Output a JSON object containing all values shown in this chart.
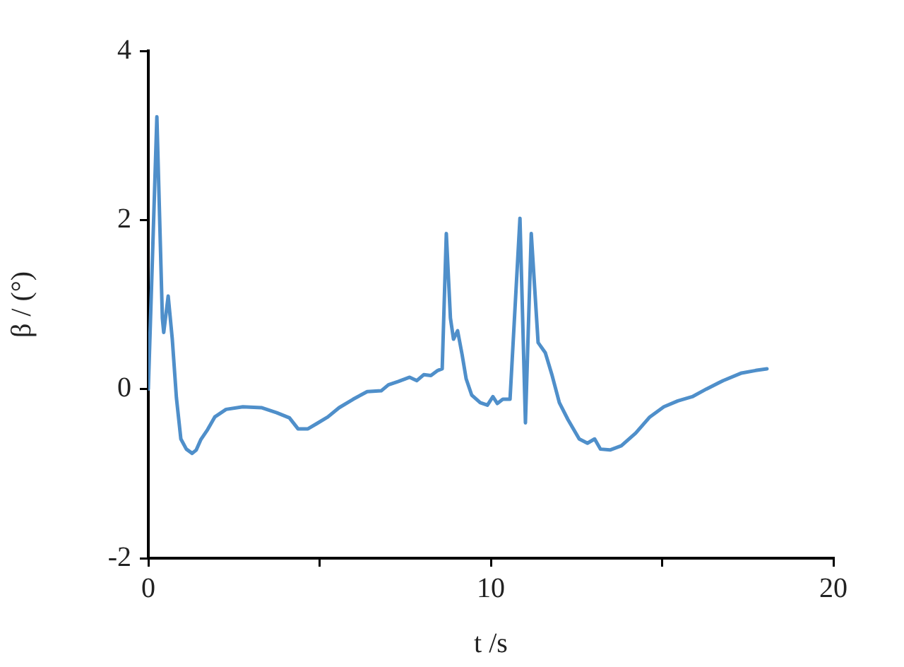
{
  "chart_data": {
    "type": "line",
    "xlabel": "t /s",
    "ylabel": "β / (°)",
    "xlim": [
      0,
      20
    ],
    "xticks": [
      0,
      {
        "value": 5,
        "label": null
      },
      10,
      {
        "value": 15,
        "label": null
      },
      20
    ],
    "ylim": [
      -2,
      4
    ],
    "yticks": [
      -2,
      0,
      2,
      4
    ],
    "grid": false,
    "legend": false,
    "marker": "none",
    "line_style": "solid",
    "series": [
      {
        "color": "#4f8fca",
        "x": [
          0,
          0.25,
          0.41,
          0.45,
          0.58,
          0.7,
          0.82,
          0.95,
          1.11,
          1.28,
          1.4,
          1.53,
          1.73,
          1.94,
          2.27,
          2.76,
          3.3,
          3.75,
          4.12,
          4.37,
          4.66,
          4.91,
          5.24,
          5.57,
          5.98,
          6.39,
          6.8,
          7.01,
          7.3,
          7.63,
          7.84,
          8.04,
          8.25,
          8.45,
          8.58,
          8.7,
          8.82,
          8.91,
          9.03,
          9.16,
          9.28,
          9.44,
          9.69,
          9.9,
          10.06,
          10.19,
          10.35,
          10.56,
          10.85,
          11.01,
          11.18,
          11.38,
          11.59,
          11.79,
          12.0,
          12.25,
          12.58,
          12.82,
          13.03,
          13.2,
          13.48,
          13.81,
          14.23,
          14.64,
          15.05,
          15.46,
          15.88,
          16.29,
          16.78,
          17.32,
          17.73,
          18.06
        ],
        "values": [
          0,
          3.22,
          0.84,
          0.67,
          1.1,
          0.59,
          -0.1,
          -0.59,
          -0.71,
          -0.76,
          -0.72,
          -0.6,
          -0.48,
          -0.33,
          -0.24,
          -0.21,
          -0.22,
          -0.28,
          -0.34,
          -0.47,
          -0.47,
          -0.41,
          -0.33,
          -0.22,
          -0.12,
          -0.03,
          -0.02,
          0.05,
          0.09,
          0.14,
          0.1,
          0.17,
          0.16,
          0.22,
          0.24,
          1.84,
          0.84,
          0.59,
          0.69,
          0.41,
          0.12,
          -0.07,
          -0.16,
          -0.19,
          -0.09,
          -0.17,
          -0.12,
          -0.12,
          2.02,
          -0.4,
          1.84,
          0.55,
          0.43,
          0.16,
          -0.16,
          -0.36,
          -0.59,
          -0.64,
          -0.59,
          -0.71,
          -0.72,
          -0.67,
          -0.52,
          -0.33,
          -0.21,
          -0.14,
          -0.09,
          0,
          0.1,
          0.19,
          0.22,
          0.24
        ]
      }
    ]
  }
}
